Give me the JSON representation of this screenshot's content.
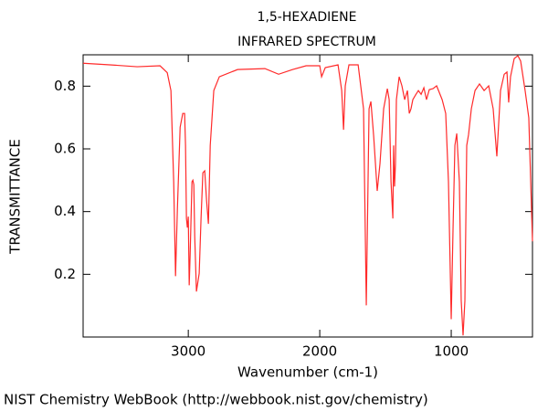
{
  "chart_data": {
    "type": "line",
    "title": "1,5-HEXADIENE",
    "subtitle": "INFRARED SPECTRUM",
    "x_label": "Wavenumber (cm-1)",
    "y_label": "TRANSMITTANCE",
    "source": "NIST Chemistry WebBook (http://webbook.nist.gov/chemistry)",
    "color": "#ff2a2a",
    "xlim": [
      3800,
      382
    ],
    "ylim": [
      0,
      0.9
    ],
    "xticks": [
      3000,
      2000,
      1000
    ],
    "yticks": [
      0.2,
      0.4,
      0.6,
      0.8
    ],
    "x": [
      3800,
      3597,
      3389,
      3215,
      3160,
      3132,
      3111,
      3097,
      3083,
      3062,
      3042,
      3028,
      3021,
      3014,
      3007,
      3000,
      2993,
      2986,
      2972,
      2965,
      2958,
      2951,
      2938,
      2917,
      2903,
      2889,
      2875,
      2861,
      2847,
      2833,
      2806,
      2764,
      2625,
      2417,
      2313,
      2208,
      2104,
      2000,
      1986,
      1958,
      1861,
      1833,
      1819,
      1806,
      1778,
      1708,
      1667,
      1646,
      1625,
      1611,
      1590,
      1563,
      1542,
      1514,
      1486,
      1472,
      1458,
      1444,
      1438,
      1431,
      1424,
      1417,
      1396,
      1375,
      1354,
      1333,
      1319,
      1306,
      1292,
      1271,
      1250,
      1229,
      1208,
      1188,
      1167,
      1139,
      1111,
      1069,
      1042,
      1021,
      1000,
      986,
      972,
      958,
      938,
      924,
      910,
      896,
      882,
      868,
      847,
      819,
      785,
      750,
      715,
      681,
      653,
      625,
      597,
      576,
      563,
      549,
      521,
      493,
      472,
      438,
      410,
      382
    ],
    "values": [
      0.873,
      0.868,
      0.862,
      0.865,
      0.843,
      0.786,
      0.495,
      0.194,
      0.407,
      0.669,
      0.713,
      0.713,
      0.611,
      0.378,
      0.349,
      0.384,
      0.165,
      0.261,
      0.495,
      0.5,
      0.486,
      0.32,
      0.145,
      0.203,
      0.378,
      0.524,
      0.53,
      0.436,
      0.361,
      0.611,
      0.786,
      0.83,
      0.853,
      0.856,
      0.838,
      0.853,
      0.865,
      0.865,
      0.83,
      0.859,
      0.868,
      0.786,
      0.661,
      0.801,
      0.868,
      0.868,
      0.728,
      0.101,
      0.728,
      0.751,
      0.641,
      0.466,
      0.553,
      0.728,
      0.792,
      0.757,
      0.495,
      0.378,
      0.611,
      0.48,
      0.553,
      0.757,
      0.83,
      0.801,
      0.757,
      0.786,
      0.713,
      0.728,
      0.757,
      0.772,
      0.786,
      0.774,
      0.795,
      0.757,
      0.789,
      0.792,
      0.801,
      0.757,
      0.713,
      0.495,
      0.057,
      0.349,
      0.611,
      0.649,
      0.495,
      0.116,
      0.005,
      0.116,
      0.611,
      0.646,
      0.728,
      0.786,
      0.807,
      0.786,
      0.801,
      0.728,
      0.576,
      0.786,
      0.838,
      0.845,
      0.748,
      0.83,
      0.888,
      0.897,
      0.88,
      0.786,
      0.699,
      0.305
    ]
  }
}
